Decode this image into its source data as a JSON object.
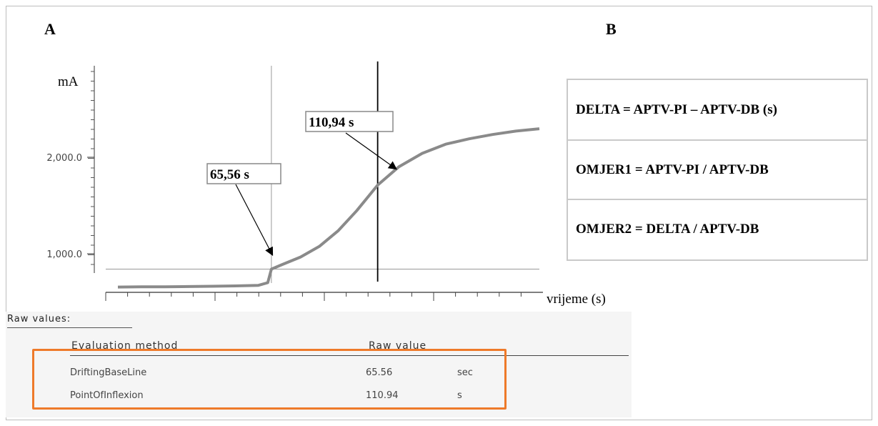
{
  "panels": {
    "a": "A",
    "b": "B"
  },
  "chart_data": {
    "type": "line",
    "ylabel": "mA",
    "xlabel": "vrijeme (s)",
    "y_ticks": [
      {
        "value": 1000,
        "label": "1,000.0"
      },
      {
        "value": 2000,
        "label": "2,000.0"
      }
    ],
    "ylim": [
      800,
      2380
    ],
    "xlim": [
      0,
      240
    ],
    "series": [
      {
        "x": [
          0,
          10,
          20,
          30,
          40,
          50,
          60,
          64,
          65.56,
          70,
          78,
          86,
          94,
          102,
          110.94,
          120,
          130,
          140,
          150,
          160,
          170,
          180
        ],
        "values": [
          840,
          842,
          843,
          845,
          848,
          852,
          858,
          885,
          915,
          960,
          1040,
          1150,
          1310,
          1520,
          1785,
          1975,
          2115,
          2210,
          2265,
          2310,
          2345,
          2370
        ]
      }
    ],
    "baseline_value": 915,
    "markers": [
      {
        "x": 65.56,
        "label": "65,56 s"
      },
      {
        "x": 110.94,
        "label": "110,94 s"
      }
    ]
  },
  "formulas": [
    "DELTA = APTV-PI – APTV-DB (s)",
    "OMJER1 = APTV-PI / APTV-DB",
    "OMJER2 = DELTA / APTV-DB"
  ],
  "raw": {
    "title": "Raw values:",
    "headers": {
      "method": "Evaluation method",
      "value": "Raw value"
    },
    "rows": [
      {
        "method": "DriftingBaseLine",
        "value": "65.56",
        "unit": "sec"
      },
      {
        "method": "PointOfInflexion",
        "value": "110.94",
        "unit": "s"
      }
    ]
  },
  "colors": {
    "curve": "#8a8a8a",
    "highlight": "#ee7a2a"
  }
}
